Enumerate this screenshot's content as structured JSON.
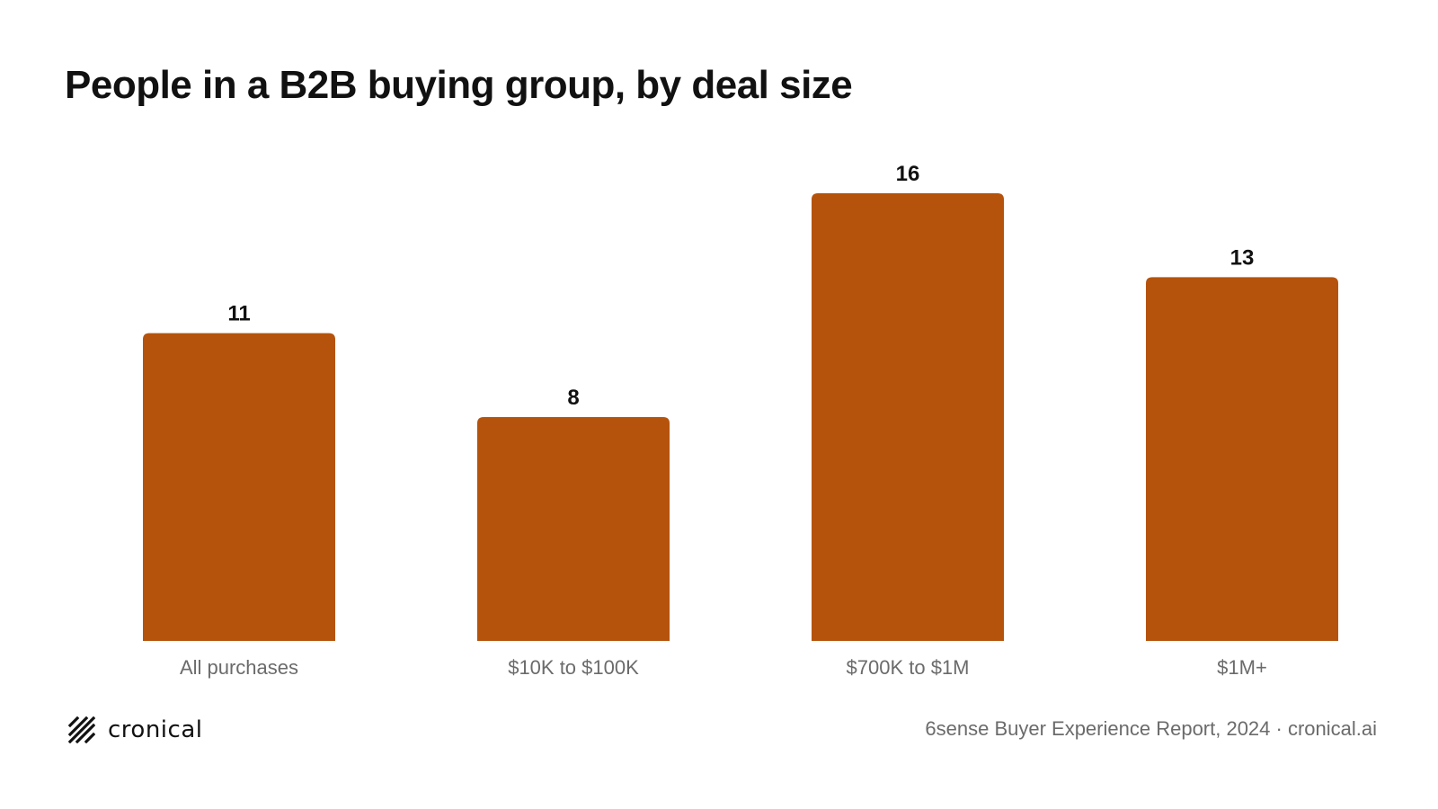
{
  "title": "People in a B2B buying group, by deal size",
  "colors": {
    "bar": "#B5530C",
    "text": "#111111",
    "muted": "#6b6b6b"
  },
  "chart_data": {
    "type": "bar",
    "title": "People in a B2B buying group, by deal size",
    "categories": [
      "All purchases",
      "$10K to $100K",
      "$700K to $1M",
      "$1M+"
    ],
    "values": [
      11,
      8,
      16,
      13
    ],
    "data_labels": [
      "11",
      "8",
      "16",
      "13"
    ],
    "xlabel": "",
    "ylabel": "",
    "ylim": [
      0,
      16
    ],
    "grid": false,
    "legend": "none"
  },
  "footer": {
    "brand": "cronical",
    "brand_icon": "slash-grid-logo-icon",
    "source": "6sense Buyer Experience Report, 2024 · cronical.ai"
  }
}
